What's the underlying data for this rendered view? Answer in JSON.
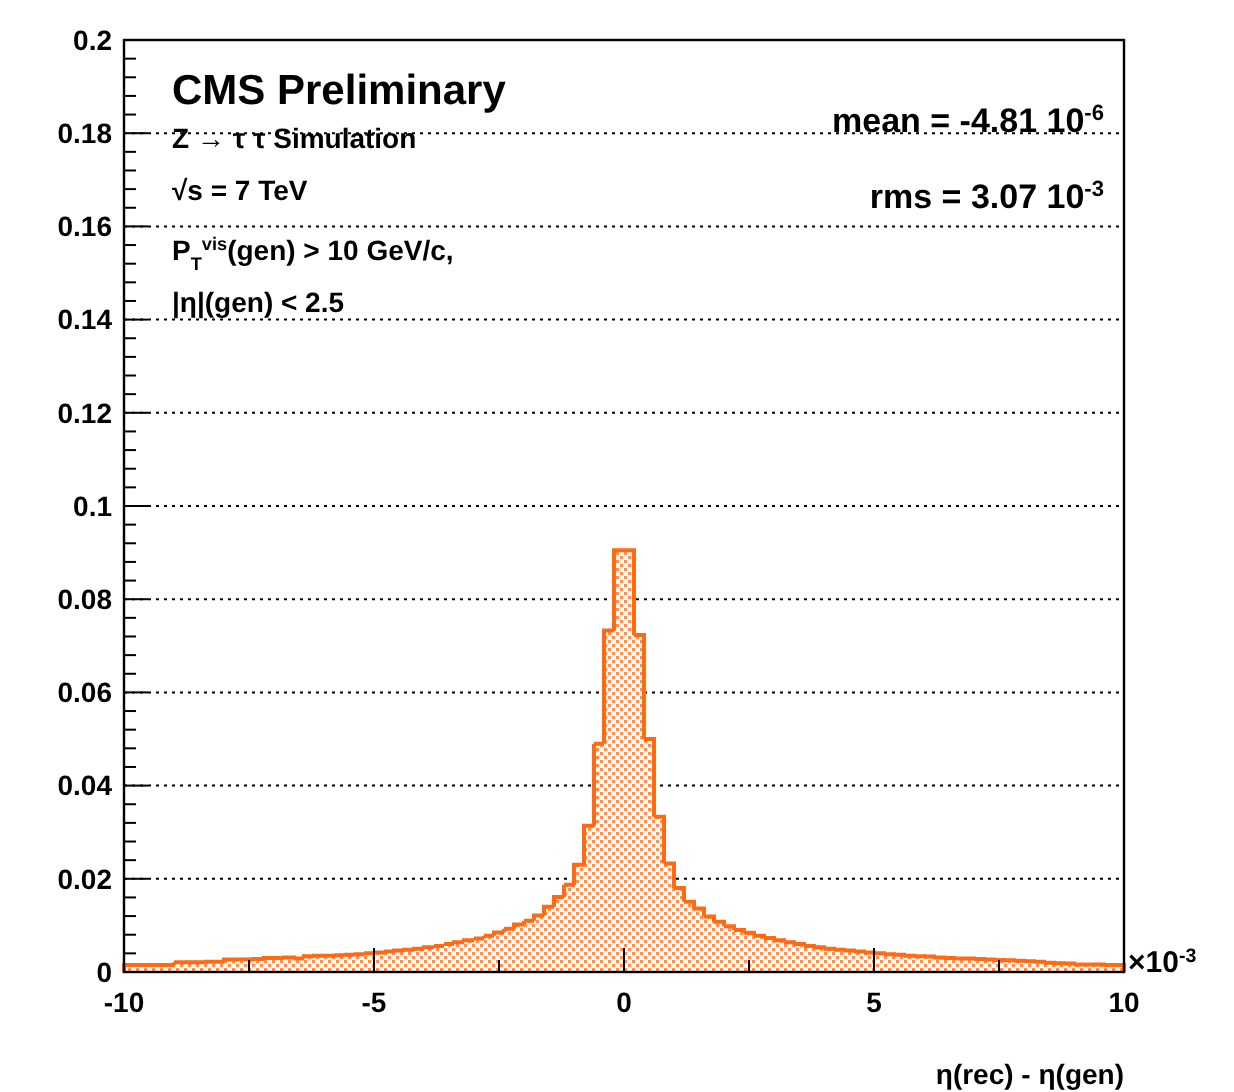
{
  "chart_data": {
    "type": "histogram",
    "title": "CMS Preliminary",
    "xlabel": "η(rec) - η(gen)",
    "color": "#ff6a13",
    "bins": [
      -10,
      -9.8,
      -9.6,
      -9.4,
      -9.2,
      -9,
      -8.8,
      -8.6,
      -8.4,
      -8.2,
      -8,
      -7.8,
      -7.6,
      -7.4,
      -7.2,
      -7,
      -6.8,
      -6.6,
      -6.4,
      -6.2,
      -6,
      -5.8,
      -5.6,
      -5.4,
      -5.2,
      -5,
      -4.8,
      -4.6,
      -4.4,
      -4.2,
      -4,
      -3.8,
      -3.6,
      -3.4,
      -3.2,
      -3,
      -2.8,
      -2.6,
      -2.4,
      -2.2,
      -2,
      -1.8,
      -1.6,
      -1.4,
      -1.2,
      -1,
      -0.8,
      -0.6,
      -0.4,
      -0.2,
      0,
      0.2,
      0.4,
      0.6,
      0.8,
      1,
      1.2,
      1.4,
      1.6,
      1.8,
      2,
      2.2,
      2.4,
      2.6,
      2.8,
      3,
      3.2,
      3.4,
      3.6,
      3.8,
      4,
      4.2,
      4.4,
      4.6,
      4.8,
      5,
      5.2,
      5.4,
      5.6,
      5.8,
      6,
      6.2,
      6.4,
      6.6,
      6.8,
      7,
      7.2,
      7.4,
      7.6,
      7.8,
      8,
      8.2,
      8.4,
      8.6,
      8.8,
      9,
      9.2,
      9.4,
      9.6,
      9.8,
      10
    ],
    "values": [
      0.0015,
      0.0015,
      0.0015,
      0.0015,
      0.0015,
      0.0021,
      0.0021,
      0.0021,
      0.0022,
      0.0022,
      0.0027,
      0.0027,
      0.0027,
      0.0028,
      0.003,
      0.003,
      0.0031,
      0.0029,
      0.0034,
      0.0035,
      0.0035,
      0.0036,
      0.0037,
      0.0038,
      0.004,
      0.0042,
      0.0044,
      0.0046,
      0.0048,
      0.005,
      0.0053,
      0.0056,
      0.006,
      0.0064,
      0.0068,
      0.0072,
      0.0078,
      0.0085,
      0.0093,
      0.0102,
      0.011,
      0.0121,
      0.014,
      0.0161,
      0.0187,
      0.023,
      0.0314,
      0.049,
      0.0733,
      0.0905,
      0.0905,
      0.0723,
      0.05,
      0.0333,
      0.0233,
      0.018,
      0.0151,
      0.0136,
      0.0119,
      0.0108,
      0.0098,
      0.009,
      0.0084,
      0.0078,
      0.0073,
      0.0068,
      0.0064,
      0.006,
      0.0056,
      0.0053,
      0.005,
      0.0048,
      0.0046,
      0.0044,
      0.0042,
      0.004,
      0.0038,
      0.0037,
      0.0035,
      0.0034,
      0.0033,
      0.0031,
      0.003,
      0.0029,
      0.0029,
      0.0028,
      0.0027,
      0.0026,
      0.0025,
      0.0024,
      0.0023,
      0.0022,
      0.002,
      0.0019,
      0.0018,
      0.0016,
      0.0016,
      0.0016,
      0.0015,
      0.0015
    ],
    "xlim": [
      -10,
      10
    ],
    "xticks": [
      -10,
      {
        "value": -7.5,
        "label": null
      },
      -5,
      {
        "value": -2.5,
        "label": null
      },
      0,
      {
        "value": 2.5,
        "label": null
      },
      5,
      {
        "value": 7.5,
        "label": null
      },
      10
    ],
    "ylim": [
      0,
      0.2
    ],
    "yticks": [
      0,
      0.02,
      0.04,
      0.06,
      0.08,
      0.1,
      0.12,
      0.14,
      0.16,
      0.18,
      0.2
    ],
    "grid": "y",
    "annotations": [
      "Z → τ τ Simulation",
      "√s = 7 TeV",
      "P$_{T}$$^{vis}$(gen) > 10 GeV/c,",
      "|η|(gen) < 2.5",
      "mean = -4.81 10$^{-6}$",
      "rms = 3.07 10$^{-3}$",
      "×10$^{-3}$"
    ]
  }
}
